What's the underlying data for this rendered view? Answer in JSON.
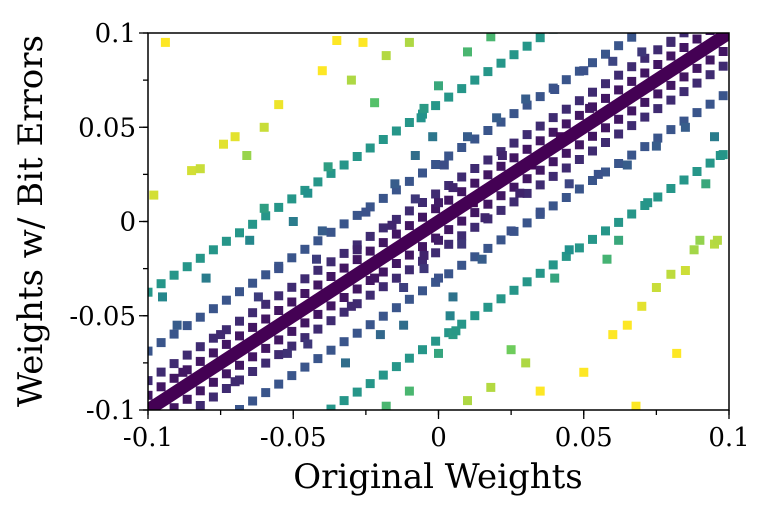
{
  "chart_data": {
    "type": "scatter",
    "title": "",
    "xlabel": "Original Weights",
    "ylabel": "Weights w/ Bit Errors",
    "xlim": [
      -0.1,
      0.1
    ],
    "ylim": [
      -0.1,
      0.1
    ],
    "xticks": [
      -0.1,
      -0.05,
      0,
      0.05,
      0.1
    ],
    "xtick_labels": [
      "-0.1",
      "-0.05",
      "0",
      "0.05",
      "0.1"
    ],
    "yticks": [
      -0.1,
      -0.05,
      0,
      0.05,
      0.1
    ],
    "ytick_labels": [
      "-0.1",
      "-0.05",
      "0",
      "0.05",
      "0.1"
    ],
    "grid": false,
    "legend": "none",
    "colormap": "viridis",
    "colormap_stops": [
      "#440154",
      "#3b528b",
      "#21918c",
      "#5ec962",
      "#fde725"
    ],
    "marker": "square",
    "description": "Dense band along the identity diagonal y = x (dark purple), with scattered off-diagonal points colored by distance from the diagonal (teal to yellow).",
    "diagonal_band": {
      "slope": 1,
      "intercept": 0,
      "color": "#440154"
    },
    "parallel_lines": [
      {
        "offset": 0.0078
      },
      {
        "offset": -0.0078
      },
      {
        "offset": 0.0156
      },
      {
        "offset": -0.0156
      },
      {
        "offset": 0.03125
      },
      {
        "offset": -0.03125
      },
      {
        "offset": 0.0625
      },
      {
        "offset": -0.0625
      }
    ],
    "points": [
      {
        "x": -0.098,
        "y": 0.014
      },
      {
        "x": -0.094,
        "y": 0.095
      },
      {
        "x": -0.085,
        "y": 0.027
      },
      {
        "x": -0.082,
        "y": 0.028
      },
      {
        "x": -0.074,
        "y": 0.041
      },
      {
        "x": -0.07,
        "y": 0.045
      },
      {
        "x": -0.066,
        "y": 0.035
      },
      {
        "x": -0.06,
        "y": 0.05
      },
      {
        "x": -0.055,
        "y": 0.062
      },
      {
        "x": -0.06,
        "y": 0.007
      },
      {
        "x": -0.045,
        "y": 0.015
      },
      {
        "x": -0.038,
        "y": 0.029
      },
      {
        "x": -0.03,
        "y": 0.075
      },
      {
        "x": -0.022,
        "y": 0.063
      },
      {
        "x": -0.018,
        "y": 0.088
      },
      {
        "x": -0.01,
        "y": 0.095
      },
      {
        "x": -0.005,
        "y": 0.06
      },
      {
        "x": 0.0,
        "y": 0.072
      },
      {
        "x": 0.01,
        "y": 0.09
      },
      {
        "x": 0.018,
        "y": 0.098
      },
      {
        "x": -0.026,
        "y": 0.095
      },
      {
        "x": -0.04,
        "y": 0.08
      },
      {
        "x": -0.035,
        "y": 0.096
      },
      {
        "x": 0.095,
        "y": -0.012
      },
      {
        "x": 0.09,
        "y": -0.01
      },
      {
        "x": 0.085,
        "y": -0.026
      },
      {
        "x": 0.08,
        "y": -0.028
      },
      {
        "x": 0.075,
        "y": -0.035
      },
      {
        "x": 0.07,
        "y": -0.045
      },
      {
        "x": 0.065,
        "y": -0.055
      },
      {
        "x": 0.06,
        "y": -0.06
      },
      {
        "x": 0.058,
        "y": -0.02
      },
      {
        "x": 0.045,
        "y": -0.015
      },
      {
        "x": 0.04,
        "y": -0.03
      },
      {
        "x": 0.03,
        "y": -0.075
      },
      {
        "x": 0.025,
        "y": -0.068
      },
      {
        "x": 0.018,
        "y": -0.088
      },
      {
        "x": 0.01,
        "y": -0.095
      },
      {
        "x": 0.005,
        "y": -0.06
      },
      {
        "x": 0.0,
        "y": -0.07
      },
      {
        "x": -0.01,
        "y": -0.09
      },
      {
        "x": -0.018,
        "y": -0.098
      },
      {
        "x": 0.05,
        "y": -0.08
      },
      {
        "x": 0.068,
        "y": -0.098
      },
      {
        "x": 0.082,
        "y": -0.07
      },
      {
        "x": 0.035,
        "y": -0.09
      },
      {
        "x": -0.095,
        "y": -0.04
      },
      {
        "x": -0.09,
        "y": -0.055
      },
      {
        "x": -0.08,
        "y": -0.03
      },
      {
        "x": -0.075,
        "y": -0.06
      },
      {
        "x": -0.065,
        "y": -0.01
      },
      {
        "x": -0.055,
        "y": -0.025
      },
      {
        "x": -0.05,
        "y": 0.0
      },
      {
        "x": -0.045,
        "y": -0.065
      },
      {
        "x": -0.04,
        "y": -0.005
      },
      {
        "x": -0.03,
        "y": -0.045
      },
      {
        "x": -0.025,
        "y": 0.005
      },
      {
        "x": -0.02,
        "y": -0.06
      },
      {
        "x": -0.015,
        "y": 0.02
      },
      {
        "x": -0.012,
        "y": -0.035
      },
      {
        "x": -0.008,
        "y": 0.035
      },
      {
        "x": -0.005,
        "y": -0.025
      },
      {
        "x": 0.002,
        "y": 0.03
      },
      {
        "x": 0.005,
        "y": -0.04
      },
      {
        "x": 0.01,
        "y": 0.045
      },
      {
        "x": 0.015,
        "y": -0.02
      },
      {
        "x": 0.02,
        "y": 0.055
      },
      {
        "x": 0.025,
        "y": -0.005
      },
      {
        "x": 0.03,
        "y": 0.065
      },
      {
        "x": 0.035,
        "y": 0.005
      },
      {
        "x": 0.04,
        "y": 0.07
      },
      {
        "x": 0.045,
        "y": 0.02
      },
      {
        "x": 0.05,
        "y": 0.08
      },
      {
        "x": 0.055,
        "y": 0.025
      },
      {
        "x": 0.06,
        "y": 0.085
      },
      {
        "x": 0.065,
        "y": 0.03
      },
      {
        "x": 0.07,
        "y": 0.09
      },
      {
        "x": 0.075,
        "y": 0.04
      },
      {
        "x": 0.08,
        "y": 0.095
      },
      {
        "x": 0.085,
        "y": 0.05
      },
      {
        "x": 0.09,
        "y": 0.09
      },
      {
        "x": 0.095,
        "y": 0.045
      },
      {
        "x": 0.097,
        "y": 0.035
      },
      {
        "x": 0.096,
        "y": -0.01
      },
      {
        "x": 0.092,
        "y": 0.02
      },
      {
        "x": 0.088,
        "y": -0.015
      },
      {
        "x": 0.072,
        "y": 0.01
      },
      {
        "x": 0.062,
        "y": -0.01
      },
      {
        "x": -0.088,
        "y": -0.08
      },
      {
        "x": -0.07,
        "y": -0.085
      },
      {
        "x": -0.062,
        "y": -0.04
      },
      {
        "x": -0.052,
        "y": -0.07
      },
      {
        "x": -0.042,
        "y": -0.02
      },
      {
        "x": -0.032,
        "y": -0.075
      },
      {
        "x": -0.022,
        "y": -0.03
      },
      {
        "x": -0.012,
        "y": -0.055
      },
      {
        "x": 0.0,
        "y": -0.01
      },
      {
        "x": 0.012,
        "y": 0.01
      },
      {
        "x": 0.022,
        "y": 0.035
      },
      {
        "x": 0.032,
        "y": 0.03
      },
      {
        "x": 0.042,
        "y": 0.045
      },
      {
        "x": 0.052,
        "y": 0.06
      },
      {
        "x": 0.028,
        "y": 0.015
      },
      {
        "x": -0.028,
        "y": -0.015
      },
      {
        "x": 0.008,
        "y": -0.012
      },
      {
        "x": -0.008,
        "y": 0.012
      },
      {
        "x": 0.016,
        "y": 0.002
      },
      {
        "x": -0.016,
        "y": -0.002
      },
      {
        "x": 0.005,
        "y": 0.018
      },
      {
        "x": -0.005,
        "y": -0.018
      },
      {
        "x": 0.0,
        "y": 0.01
      },
      {
        "x": 0.0,
        "y": -0.03
      },
      {
        "x": -0.002,
        "y": 0.045
      },
      {
        "x": 0.004,
        "y": -0.05
      },
      {
        "x": -0.006,
        "y": 0.055
      },
      {
        "x": 0.006,
        "y": -0.058
      }
    ]
  }
}
